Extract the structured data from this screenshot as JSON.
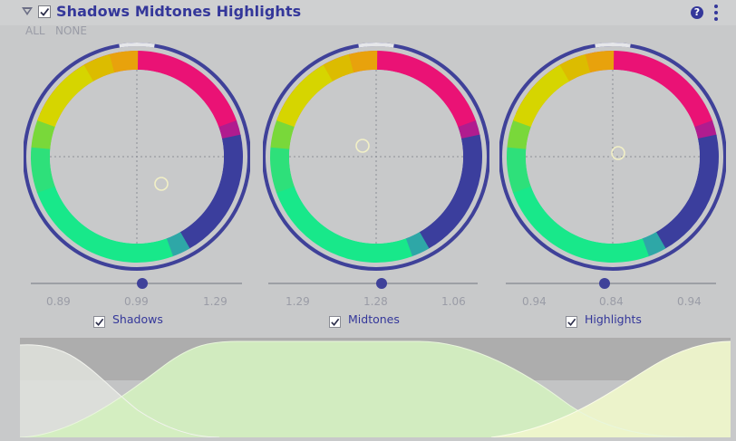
{
  "header": {
    "title": "Shadows Midtones Highlights",
    "enabled": true,
    "help_icon": "help-icon",
    "menu_icon": "kebab-menu-icon",
    "help_glyph": "?"
  },
  "selection": {
    "all_label": "ALL",
    "none_label": "NONE"
  },
  "wheels": [
    {
      "id": "shadows",
      "label": "Shadows",
      "checked": true,
      "values": [
        "0.89",
        "0.99",
        "1.29"
      ],
      "slider_level": 0.5
    },
    {
      "id": "midtones",
      "label": "Midtones",
      "checked": true,
      "values": [
        "1.29",
        "1.28",
        "1.06"
      ],
      "slider_level": 0.5
    },
    {
      "id": "highlights",
      "label": "Highlights",
      "checked": true,
      "values": [
        "0.94",
        "0.84",
        "0.94"
      ],
      "slider_level": 0.5
    }
  ],
  "colors": {
    "accent": "#34379a",
    "ring_outer": "#3f4199",
    "curve_fill": "#d4efbe",
    "curve_band": "#aeaeae"
  }
}
